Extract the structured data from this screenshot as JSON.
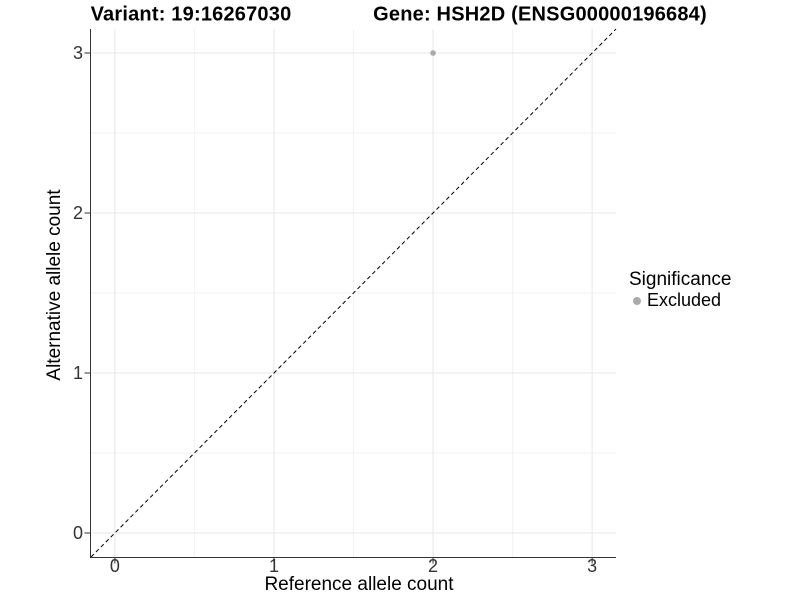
{
  "chart_data": {
    "type": "scatter",
    "title_left": "Variant: 19:16267030",
    "title_right": "Gene: HSH2D (ENSG00000196684)",
    "xlabel": "Reference allele count",
    "ylabel": "Alternative allele count",
    "xlim": [
      -0.15,
      3.15
    ],
    "ylim": [
      -0.15,
      3.15
    ],
    "x_ticks": [
      0,
      1,
      2,
      3
    ],
    "y_ticks": [
      0,
      1,
      2,
      3
    ],
    "x_minor_ticks": [
      0.5,
      1.5,
      2.5
    ],
    "y_minor_ticks": [
      0.5,
      1.5,
      2.5
    ],
    "grid": "major+minor",
    "reference_line": {
      "kind": "identity",
      "equation": "y = x",
      "style": "dashed",
      "color": "#000000"
    },
    "series": [
      {
        "name": "Excluded",
        "color": "#aaaaaa",
        "points": [
          {
            "x": 2,
            "y": 3
          }
        ]
      }
    ],
    "legend": {
      "title": "Significance",
      "position": "right",
      "items": [
        {
          "label": "Excluded",
          "color": "#aaaaaa",
          "marker": "circle"
        }
      ]
    },
    "colors": {
      "background": "#ffffff",
      "grid_major": "#e7e7e7",
      "grid_minor": "#f2f2f2",
      "axis": "#333333",
      "tick_text": "#333333",
      "title_text": "#000000"
    }
  }
}
